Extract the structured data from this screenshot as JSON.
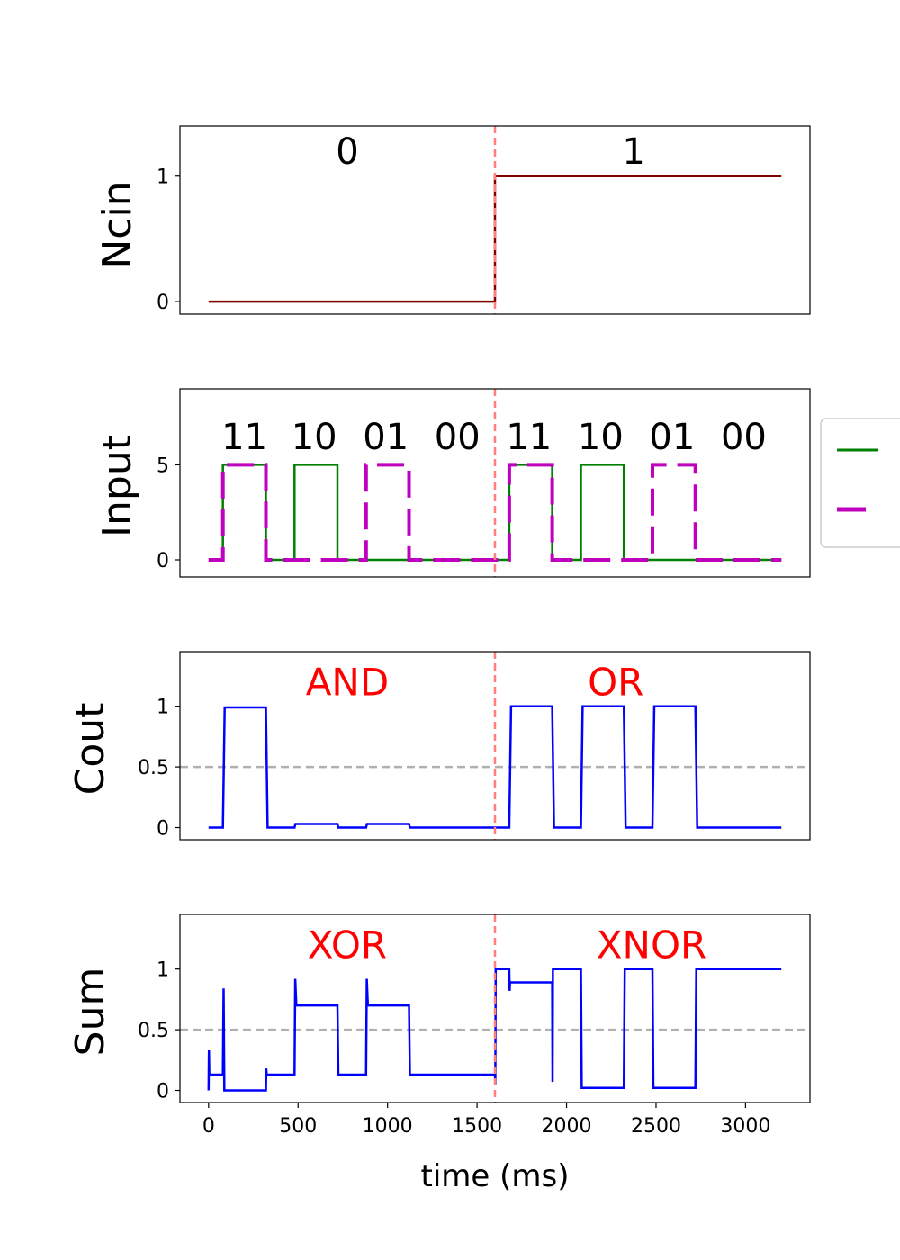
{
  "colors": {
    "ncin": "#800000",
    "input_a": "#008000",
    "input_b": "#bf00bf",
    "output": "#0000ff",
    "divider": "#ff7f7f",
    "threshold": "#b0b0b0",
    "gate_label": "#ff0000"
  },
  "chart_data": [
    {
      "type": "line",
      "ylabel": "Ncin",
      "xlim": [
        -160,
        3360
      ],
      "ylim": [
        -0.1,
        1.4
      ],
      "yticks": [
        0,
        1
      ],
      "vline_x": 1600,
      "annotations": [
        {
          "text": "0",
          "x": 775,
          "y": 1.2
        },
        {
          "text": "1",
          "x": 2375,
          "y": 1.2
        }
      ],
      "series": [
        {
          "key": "ncin",
          "style": "solid",
          "points": [
            [
              0,
              0
            ],
            [
              1600,
              0
            ],
            [
              1600,
              1
            ],
            [
              3200,
              1
            ]
          ]
        }
      ]
    },
    {
      "type": "line",
      "ylabel": "Input",
      "xlim": [
        -160,
        3360
      ],
      "ylim": [
        -0.9,
        9.0
      ],
      "yticks": [
        0,
        5
      ],
      "vline_x": 1600,
      "annotations": [
        {
          "text": "11",
          "x": 200,
          "y": 6.5
        },
        {
          "text": "10",
          "x": 590,
          "y": 6.5
        },
        {
          "text": "01",
          "x": 990,
          "y": 6.5
        },
        {
          "text": "00",
          "x": 1390,
          "y": 6.5
        },
        {
          "text": "11",
          "x": 1790,
          "y": 6.5
        },
        {
          "text": "10",
          "x": 2190,
          "y": 6.5
        },
        {
          "text": "01",
          "x": 2590,
          "y": 6.5
        },
        {
          "text": "00",
          "x": 2990,
          "y": 6.5
        }
      ],
      "series": [
        {
          "key": "input_a",
          "style": "solid",
          "points": [
            [
              0,
              0
            ],
            [
              80,
              0
            ],
            [
              80,
              5
            ],
            [
              320,
              5
            ],
            [
              320,
              0
            ],
            [
              480,
              0
            ],
            [
              480,
              5
            ],
            [
              720,
              5
            ],
            [
              720,
              0
            ],
            [
              1680,
              0
            ],
            [
              1680,
              5
            ],
            [
              1920,
              5
            ],
            [
              1920,
              0
            ],
            [
              2080,
              0
            ],
            [
              2080,
              5
            ],
            [
              2320,
              5
            ],
            [
              2320,
              0
            ],
            [
              3200,
              0
            ]
          ]
        },
        {
          "key": "input_b",
          "style": "dashed",
          "points": [
            [
              0,
              0
            ],
            [
              80,
              0
            ],
            [
              80,
              5
            ],
            [
              320,
              5
            ],
            [
              320,
              0
            ],
            [
              880,
              0
            ],
            [
              880,
              5
            ],
            [
              1120,
              5
            ],
            [
              1120,
              0
            ],
            [
              1680,
              0
            ],
            [
              1680,
              5
            ],
            [
              1920,
              5
            ],
            [
              1920,
              0
            ],
            [
              2480,
              0
            ],
            [
              2480,
              5
            ],
            [
              2720,
              5
            ],
            [
              2720,
              0
            ],
            [
              3200,
              0
            ]
          ]
        }
      ]
    },
    {
      "type": "line",
      "ylabel": "Cout",
      "xlim": [
        -160,
        3360
      ],
      "ylim": [
        -0.1,
        1.45
      ],
      "yticks": [
        0,
        0.5,
        1
      ],
      "threshold": 0.5,
      "vline_x": 1600,
      "annotations": [
        {
          "text": "AND",
          "x": 775,
          "y": 1.2
        },
        {
          "text": "OR",
          "x": 2275,
          "y": 1.2
        }
      ],
      "series": [
        {
          "key": "output",
          "style": "solid",
          "points": [
            [
              0,
              0
            ],
            [
              80,
              0
            ],
            [
              90,
              0.99
            ],
            [
              320,
              0.99
            ],
            [
              330,
              0
            ],
            [
              480,
              0
            ],
            [
              485,
              0.03
            ],
            [
              720,
              0.03
            ],
            [
              725,
              0
            ],
            [
              880,
              0
            ],
            [
              885,
              0.03
            ],
            [
              1120,
              0.03
            ],
            [
              1125,
              0
            ],
            [
              1680,
              0
            ],
            [
              1690,
              1
            ],
            [
              1920,
              1
            ],
            [
              1930,
              0
            ],
            [
              2080,
              0
            ],
            [
              2090,
              1
            ],
            [
              2320,
              1
            ],
            [
              2330,
              0
            ],
            [
              2480,
              0
            ],
            [
              2490,
              1
            ],
            [
              2720,
              1
            ],
            [
              2730,
              0
            ],
            [
              3200,
              0
            ]
          ]
        }
      ]
    },
    {
      "type": "line",
      "ylabel": "Sum",
      "xlabel": "time (ms)",
      "xlim": [
        -160,
        3360
      ],
      "ylim": [
        -0.1,
        1.45
      ],
      "yticks": [
        0,
        0.5,
        1
      ],
      "xticks": [
        0,
        500,
        1000,
        1500,
        2000,
        2500,
        3000
      ],
      "threshold": 0.5,
      "vline_x": 1600,
      "annotations": [
        {
          "text": "XOR",
          "x": 775,
          "y": 1.2
        },
        {
          "text": "XNOR",
          "x": 2475,
          "y": 1.2
        }
      ],
      "series": [
        {
          "key": "output",
          "style": "solid",
          "points": [
            [
              0,
              0
            ],
            [
              2,
              0.33
            ],
            [
              4,
              0.13
            ],
            [
              80,
              0.13
            ],
            [
              84,
              0.84
            ],
            [
              88,
              0
            ],
            [
              320,
              0
            ],
            [
              322,
              0.18
            ],
            [
              325,
              0.13
            ],
            [
              480,
              0.13
            ],
            [
              484,
              0.92
            ],
            [
              490,
              0.7
            ],
            [
              720,
              0.7
            ],
            [
              725,
              0.13
            ],
            [
              880,
              0.13
            ],
            [
              884,
              0.92
            ],
            [
              890,
              0.7
            ],
            [
              1120,
              0.7
            ],
            [
              1125,
              0.13
            ],
            [
              1600,
              0.13
            ],
            [
              1602,
              0.05
            ],
            [
              1604,
              1
            ],
            [
              1680,
              1
            ],
            [
              1682,
              0.82
            ],
            [
              1684,
              0.89
            ],
            [
              1920,
              0.89
            ],
            [
              1922,
              0.07
            ],
            [
              1924,
              1
            ],
            [
              2080,
              1
            ],
            [
              2085,
              0.02
            ],
            [
              2320,
              0.02
            ],
            [
              2325,
              1
            ],
            [
              2480,
              1
            ],
            [
              2485,
              0.02
            ],
            [
              2720,
              0.02
            ],
            [
              2725,
              1
            ],
            [
              3200,
              1
            ]
          ]
        }
      ]
    }
  ]
}
